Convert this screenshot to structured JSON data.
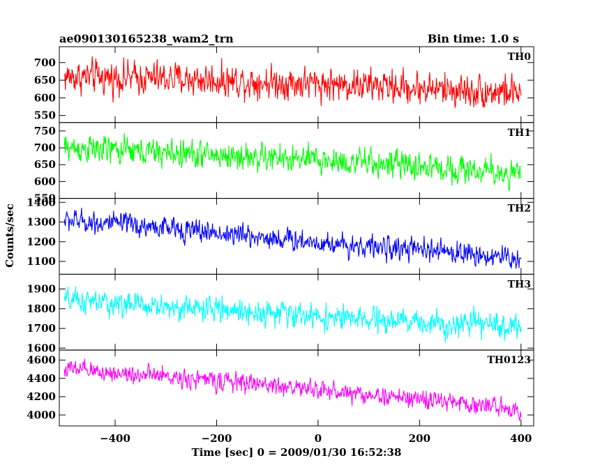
{
  "chart_data": {
    "type": "line",
    "title_left": "ae090130165238_wam2_trn",
    "title_right": "Bin time: 1.0 s",
    "xlabel": "Time [sec] 0 = 2009/01/30 16:52:38",
    "ylabel": "Counts/sec",
    "xlim": [
      -510,
      425
    ],
    "x_ticks": [
      -400,
      -200,
      0,
      200,
      400
    ],
    "x_range": [
      -500,
      400
    ],
    "panels": [
      {
        "name": "TH0",
        "color": "#ff0000",
        "ylim": [
          530,
          745
        ],
        "y_ticks": [
          550,
          600,
          650,
          700
        ],
        "trend": {
          "x": [
            -500,
            -300,
            -100,
            100,
            300,
            400
          ],
          "y": [
            660,
            655,
            645,
            635,
            620,
            615
          ]
        },
        "noise_range": 45
      },
      {
        "name": "TH1",
        "color": "#00ff00",
        "ylim": [
          550,
          775
        ],
        "y_ticks": [
          550,
          600,
          650,
          700,
          750
        ],
        "trend": {
          "x": [
            -500,
            -300,
            -100,
            100,
            300,
            400
          ],
          "y": [
            700,
            685,
            670,
            655,
            635,
            620
          ]
        },
        "noise_range": 40
      },
      {
        "name": "TH2",
        "color": "#0000ff",
        "ylim": [
          1035,
          1420
        ],
        "y_ticks": [
          1100,
          1200,
          1300,
          1400
        ],
        "trend": {
          "x": [
            -500,
            -300,
            -100,
            100,
            300,
            400
          ],
          "y": [
            1310,
            1270,
            1220,
            1175,
            1140,
            1110
          ]
        },
        "noise_range": 55
      },
      {
        "name": "TH3",
        "color": "#00ffff",
        "ylim": [
          1590,
          1975
        ],
        "y_ticks": [
          1600,
          1700,
          1800,
          1900
        ],
        "trend": {
          "x": [
            -500,
            -300,
            -100,
            100,
            300,
            400
          ],
          "y": [
            1840,
            1810,
            1780,
            1740,
            1720,
            1710
          ]
        },
        "noise_range": 60
      },
      {
        "name": "TH0123",
        "color": "#ff00ff",
        "ylim": [
          3880,
          4710
        ],
        "y_ticks": [
          4000,
          4200,
          4400,
          4600
        ],
        "trend": {
          "x": [
            -500,
            -300,
            -100,
            100,
            300,
            400
          ],
          "y": [
            4500,
            4420,
            4330,
            4220,
            4120,
            4060
          ]
        },
        "noise_range": 100
      }
    ]
  }
}
